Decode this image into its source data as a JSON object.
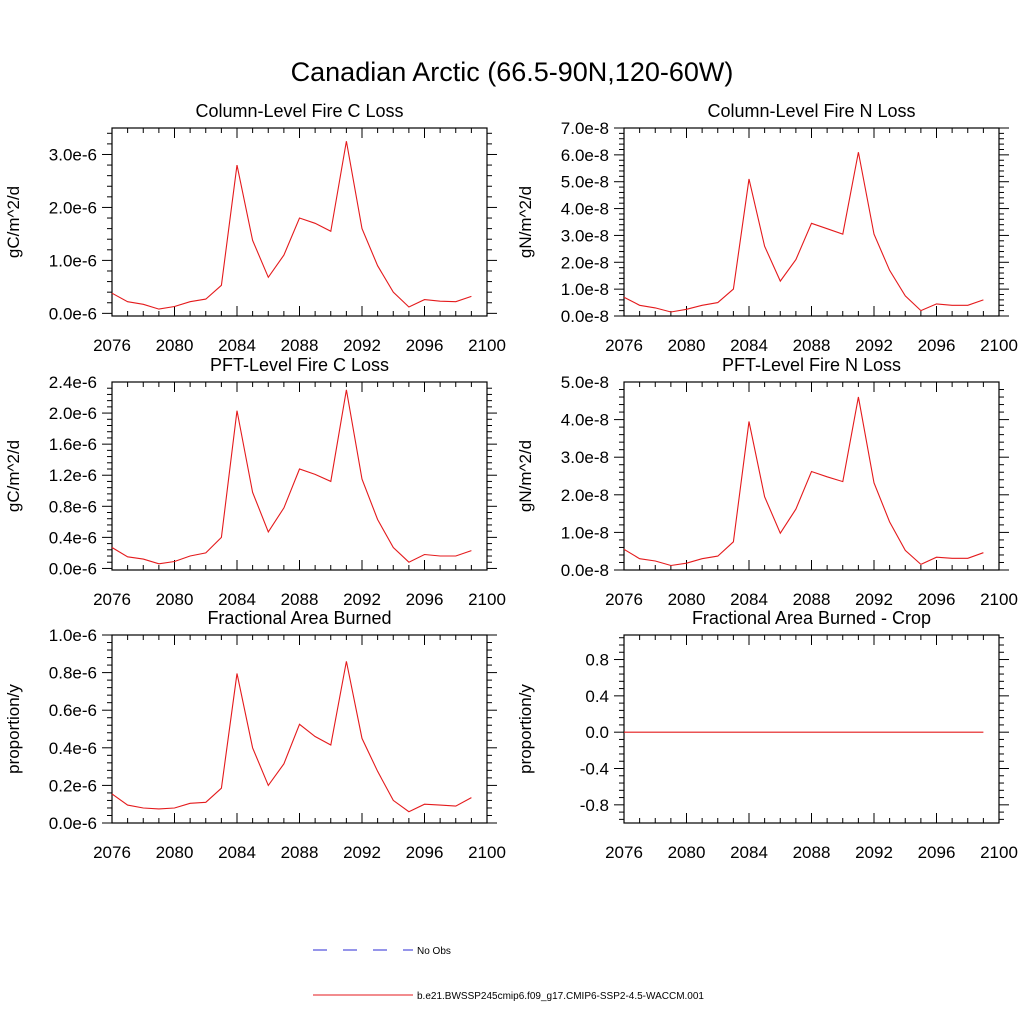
{
  "title": "Canadian Arctic (66.5-90N,120-60W)",
  "colors": {
    "model_line": "#e41a1c",
    "obs_line": "#2b2bd6",
    "axis": "#000000"
  },
  "chart_data": [
    {
      "type": "line",
      "title": "Column-Level Fire C Loss",
      "xlabel": "",
      "ylabel": "gC/m^2/d",
      "xlim": [
        2076,
        2100
      ],
      "ylim": [
        -5e-08,
        3.5e-06
      ],
      "xticks": [
        2076,
        2080,
        2084,
        2088,
        2092,
        2096,
        2100
      ],
      "xtick_labels": [
        "2076",
        "2080",
        "2084",
        "2088",
        "2092",
        "2096",
        "2100"
      ],
      "yticks": [
        0,
        1e-06,
        2e-06,
        3e-06
      ],
      "ytick_labels": [
        "0.0e-6",
        "1.0e-6",
        "2.0e-6",
        "3.0e-6"
      ],
      "x": [
        2076,
        2077,
        2078,
        2079,
        2080,
        2081,
        2082,
        2083,
        2084,
        2085,
        2086,
        2087,
        2088,
        2089,
        2090,
        2091,
        2092,
        2093,
        2094,
        2095,
        2096,
        2097,
        2098,
        2099
      ],
      "series": [
        {
          "name": "b.e21.BWSSP245cmip6.f09_g17.CMIP6-SSP2-4.5-WACCM.001",
          "values": [
            3.8e-07,
            2.2e-07,
            1.7e-07,
            8e-08,
            1.3e-07,
            2.2e-07,
            2.7e-07,
            5.3e-07,
            2.8e-06,
            1.38e-06,
            6.8e-07,
            1.1e-06,
            1.8e-06,
            1.7e-06,
            1.55e-06,
            3.25e-06,
            1.6e-06,
            9e-07,
            4e-07,
            1.2e-07,
            2.6e-07,
            2.3e-07,
            2.2e-07,
            3.2e-07
          ]
        }
      ]
    },
    {
      "type": "line",
      "title": "Column-Level Fire N Loss",
      "xlabel": "",
      "ylabel": "gN/m^2/d",
      "xlim": [
        2076,
        2100
      ],
      "ylim": [
        0,
        7e-08
      ],
      "xticks": [
        2076,
        2080,
        2084,
        2088,
        2092,
        2096,
        2100
      ],
      "xtick_labels": [
        "2076",
        "2080",
        "2084",
        "2088",
        "2092",
        "2096",
        "2100"
      ],
      "yticks": [
        0,
        1e-08,
        2e-08,
        3e-08,
        4e-08,
        5e-08,
        6e-08,
        7e-08
      ],
      "ytick_labels": [
        "0.0e-8",
        "1.0e-8",
        "2.0e-8",
        "3.0e-8",
        "4.0e-8",
        "5.0e-8",
        "6.0e-8",
        "7.0e-8"
      ],
      "x": [
        2076,
        2077,
        2078,
        2079,
        2080,
        2081,
        2082,
        2083,
        2084,
        2085,
        2086,
        2087,
        2088,
        2089,
        2090,
        2091,
        2092,
        2093,
        2094,
        2095,
        2096,
        2097,
        2098,
        2099
      ],
      "series": [
        {
          "name": "b.e21.BWSSP245cmip6.f09_g17.CMIP6-SSP2-4.5-WACCM.001",
          "values": [
            7e-09,
            4e-09,
            3e-09,
            1.5e-09,
            2.5e-09,
            4e-09,
            5e-09,
            1e-08,
            5.1e-08,
            2.6e-08,
            1.3e-08,
            2.1e-08,
            3.45e-08,
            3.25e-08,
            3.05e-08,
            6.1e-08,
            3.05e-08,
            1.7e-08,
            7.5e-09,
            2e-09,
            4.5e-09,
            4e-09,
            4e-09,
            6e-09
          ]
        }
      ]
    },
    {
      "type": "line",
      "title": "PFT-Level Fire C Loss",
      "xlabel": "",
      "ylabel": "gC/m^2/d",
      "xlim": [
        2076,
        2100
      ],
      "ylim": [
        -2e-08,
        2.4e-06
      ],
      "xticks": [
        2076,
        2080,
        2084,
        2088,
        2092,
        2096,
        2100
      ],
      "xtick_labels": [
        "2076",
        "2080",
        "2084",
        "2088",
        "2092",
        "2096",
        "2100"
      ],
      "yticks": [
        0,
        4e-07,
        8e-07,
        1.2e-06,
        1.6e-06,
        2e-06,
        2.4e-06
      ],
      "ytick_labels": [
        "0.0e-6",
        "0.4e-6",
        "0.8e-6",
        "1.2e-6",
        "1.6e-6",
        "2.0e-6",
        "2.4e-6"
      ],
      "x": [
        2076,
        2077,
        2078,
        2079,
        2080,
        2081,
        2082,
        2083,
        2084,
        2085,
        2086,
        2087,
        2088,
        2089,
        2090,
        2091,
        2092,
        2093,
        2094,
        2095,
        2096,
        2097,
        2098,
        2099
      ],
      "series": [
        {
          "name": "b.e21.BWSSP245cmip6.f09_g17.CMIP6-SSP2-4.5-WACCM.001",
          "values": [
            2.7e-07,
            1.5e-07,
            1.2e-07,
            6e-08,
            9e-08,
            1.6e-07,
            2e-07,
            4e-07,
            2.03e-06,
            9.8e-07,
            4.7e-07,
            7.8e-07,
            1.28e-06,
            1.21e-06,
            1.12e-06,
            2.3e-06,
            1.15e-06,
            6.3e-07,
            2.7e-07,
            8e-08,
            1.8e-07,
            1.6e-07,
            1.6e-07,
            2.3e-07
          ]
        }
      ]
    },
    {
      "type": "line",
      "title": "PFT-Level Fire N Loss",
      "xlabel": "",
      "ylabel": "gN/m^2/d",
      "xlim": [
        2076,
        2100
      ],
      "ylim": [
        0,
        5e-08
      ],
      "xticks": [
        2076,
        2080,
        2084,
        2088,
        2092,
        2096,
        2100
      ],
      "xtick_labels": [
        "2076",
        "2080",
        "2084",
        "2088",
        "2092",
        "2096",
        "2100"
      ],
      "yticks": [
        0,
        1e-08,
        2e-08,
        3e-08,
        4e-08,
        5e-08
      ],
      "ytick_labels": [
        "0.0e-8",
        "1.0e-8",
        "2.0e-8",
        "3.0e-8",
        "4.0e-8",
        "5.0e-8"
      ],
      "x": [
        2076,
        2077,
        2078,
        2079,
        2080,
        2081,
        2082,
        2083,
        2084,
        2085,
        2086,
        2087,
        2088,
        2089,
        2090,
        2091,
        2092,
        2093,
        2094,
        2095,
        2096,
        2097,
        2098,
        2099
      ],
      "series": [
        {
          "name": "b.e21.BWSSP245cmip6.f09_g17.CMIP6-SSP2-4.5-WACCM.001",
          "values": [
            5.5e-09,
            3e-09,
            2.4e-09,
            1.2e-09,
            1.8e-09,
            3e-09,
            3.7e-09,
            7.5e-09,
            3.95e-08,
            1.95e-08,
            9.8e-09,
            1.62e-08,
            2.62e-08,
            2.48e-08,
            2.35e-08,
            4.6e-08,
            2.32e-08,
            1.28e-08,
            5.2e-09,
            1.5e-09,
            3.4e-09,
            3.1e-09,
            3.1e-09,
            4.6e-09
          ]
        }
      ]
    },
    {
      "type": "line",
      "title": "Fractional Area Burned",
      "xlabel": "",
      "ylabel": "proportion/y",
      "xlim": [
        2076,
        2100
      ],
      "ylim": [
        0,
        1e-06
      ],
      "xticks": [
        2076,
        2080,
        2084,
        2088,
        2092,
        2096,
        2100
      ],
      "xtick_labels": [
        "2076",
        "2080",
        "2084",
        "2088",
        "2092",
        "2096",
        "2100"
      ],
      "yticks": [
        0,
        2e-07,
        4e-07,
        6e-07,
        8e-07,
        1e-06
      ],
      "ytick_labels": [
        "0.0e-6",
        "0.2e-6",
        "0.4e-6",
        "0.6e-6",
        "0.8e-6",
        "1.0e-6"
      ],
      "x": [
        2076,
        2077,
        2078,
        2079,
        2080,
        2081,
        2082,
        2083,
        2084,
        2085,
        2086,
        2087,
        2088,
        2089,
        2090,
        2091,
        2092,
        2093,
        2094,
        2095,
        2096,
        2097,
        2098,
        2099
      ],
      "series": [
        {
          "name": "b.e21.BWSSP245cmip6.f09_g17.CMIP6-SSP2-4.5-WACCM.001",
          "values": [
            1.55e-07,
            9.5e-08,
            8e-08,
            7.5e-08,
            8e-08,
            1.05e-07,
            1.1e-07,
            1.85e-07,
            7.95e-07,
            4e-07,
            2e-07,
            3.15e-07,
            5.25e-07,
            4.6e-07,
            4.15e-07,
            8.6e-07,
            4.5e-07,
            2.75e-07,
            1.2e-07,
            6e-08,
            1e-07,
            9.5e-08,
            9e-08,
            1.35e-07
          ]
        }
      ]
    },
    {
      "type": "line",
      "title": "Fractional Area Burned - Crop",
      "xlabel": "",
      "ylabel": "proportion/y",
      "xlim": [
        2076,
        2100
      ],
      "ylim": [
        -1.0,
        1.07
      ],
      "xticks": [
        2076,
        2080,
        2084,
        2088,
        2092,
        2096,
        2100
      ],
      "xtick_labels": [
        "2076",
        "2080",
        "2084",
        "2088",
        "2092",
        "2096",
        "2100"
      ],
      "yticks": [
        -0.8,
        -0.4,
        0.0,
        0.4,
        0.8
      ],
      "ytick_labels": [
        "-0.8",
        "-0.4",
        "0.0",
        "0.4",
        "0.8"
      ],
      "x": [
        2076,
        2077,
        2078,
        2079,
        2080,
        2081,
        2082,
        2083,
        2084,
        2085,
        2086,
        2087,
        2088,
        2089,
        2090,
        2091,
        2092,
        2093,
        2094,
        2095,
        2096,
        2097,
        2098,
        2099
      ],
      "series": [
        {
          "name": "b.e21.BWSSP245cmip6.f09_g17.CMIP6-SSP2-4.5-WACCM.001",
          "values": [
            0,
            0,
            0,
            0,
            0,
            0,
            0,
            0,
            0,
            0,
            0,
            0,
            0,
            0,
            0,
            0,
            0,
            0,
            0,
            0,
            0,
            0,
            0,
            0
          ]
        }
      ]
    }
  ],
  "legend": {
    "items": [
      {
        "label": "No Obs",
        "style": "dashed",
        "color_key": "obs_line"
      },
      {
        "label": "b.e21.BWSSP245cmip6.f09_g17.CMIP6-SSP2-4.5-WACCM.001",
        "style": "solid",
        "color_key": "model_line"
      }
    ]
  }
}
